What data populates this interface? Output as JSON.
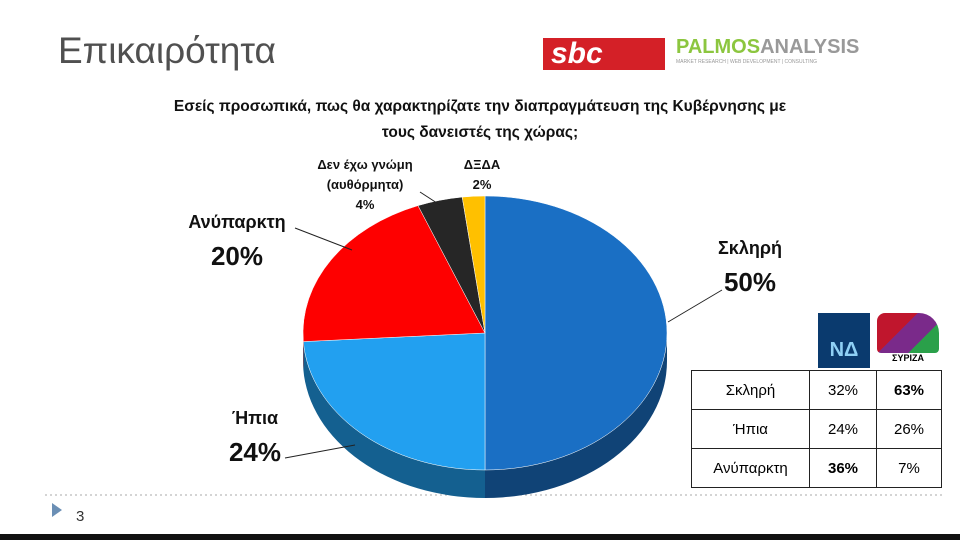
{
  "slide": {
    "title": "Επικαιρότητα",
    "page_number": "3"
  },
  "logos": {
    "sbc": "sbc",
    "palmos": "PALMOS",
    "analysis": "ANALYSIS",
    "tagline": "MARKET RESEARCH | WEB DEVELOPMENT | CONSULTING"
  },
  "chart_data": {
    "type": "pie",
    "title": "Εσείς προσωπικά, πως θα χαρακτηρίζατε την διαπραγμάτευση της Κυβέρνησης  με τους δανειστές της χώρας;",
    "categories": [
      "Σκληρή",
      "Ήπια",
      "Ανύπαρκτη",
      "Δεν έχω γνώμη (αυθόρμητα)",
      "ΔΞΔΑ"
    ],
    "values": [
      50,
      24,
      20,
      4,
      2
    ],
    "value_labels": [
      "50%",
      "24%",
      "20%",
      "4%",
      "2%"
    ],
    "colors": [
      "#1a6fc4",
      "#22a0f0",
      "#fe0000",
      "#262626",
      "#ffc000"
    ]
  },
  "table": {
    "columns": [
      "ΝΔ",
      "ΣΥΡΙΖΑ"
    ],
    "rows": [
      [
        "Σκληρή",
        "32%",
        "63%"
      ],
      [
        "Ήπια",
        "24%",
        "26%"
      ],
      [
        "Ανύπαρκτη",
        "36%",
        "7%"
      ]
    ]
  }
}
